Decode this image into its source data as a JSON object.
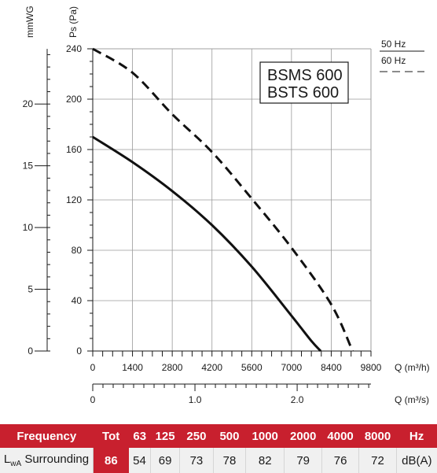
{
  "chart_data": {
    "type": "line",
    "xlabel": "Q (m³/h)",
    "x2label": "Q (m³/s)",
    "ylabel": "Ps (Pa)",
    "y2label": "mmWG",
    "xlim": [
      0,
      9800
    ],
    "ylim": [
      0,
      240
    ],
    "x_ticks": [
      "0",
      "1400",
      "2800",
      "4200",
      "5600",
      "7000",
      "8400",
      "9800"
    ],
    "y_ticks": [
      "0",
      "40",
      "80",
      "120",
      "160",
      "200",
      "240"
    ],
    "x2_ticks": [
      "0",
      "1.0",
      "2.0"
    ],
    "x2_tick_values": [
      0,
      1.0,
      2.0
    ],
    "y2_ticks": [
      "0",
      "5",
      "10",
      "15",
      "20"
    ],
    "y2_tick_values": [
      0,
      5,
      10,
      15,
      20
    ],
    "grid": true,
    "legend_position": "top-right",
    "models": [
      "BSMS 600",
      "BSTS 600"
    ],
    "series": [
      {
        "name": "50 Hz",
        "style": "solid",
        "x": [
          0,
          1400,
          2800,
          4200,
          5600,
          7000,
          7700,
          8030
        ],
        "y": [
          170,
          150,
          127,
          100,
          67,
          28,
          8,
          0
        ]
      },
      {
        "name": "60 Hz",
        "style": "dashed",
        "x": [
          0,
          1400,
          2800,
          4200,
          5600,
          7000,
          8400,
          9150
        ],
        "y": [
          240,
          221,
          188,
          158,
          121,
          82,
          37,
          0
        ]
      }
    ]
  },
  "sound_table": {
    "header": {
      "label": "Frequency",
      "tot": "Tot",
      "bands": [
        "63",
        "125",
        "250",
        "500",
        "1000",
        "2000",
        "4000",
        "8000"
      ],
      "unit": "Hz"
    },
    "row": {
      "label_main": "L",
      "label_sub": "wA",
      "label_rest": " Surrounding",
      "tot": "86",
      "values": [
        "54",
        "69",
        "73",
        "78",
        "82",
        "79",
        "76",
        "72"
      ],
      "unit": "dB(A)"
    }
  }
}
